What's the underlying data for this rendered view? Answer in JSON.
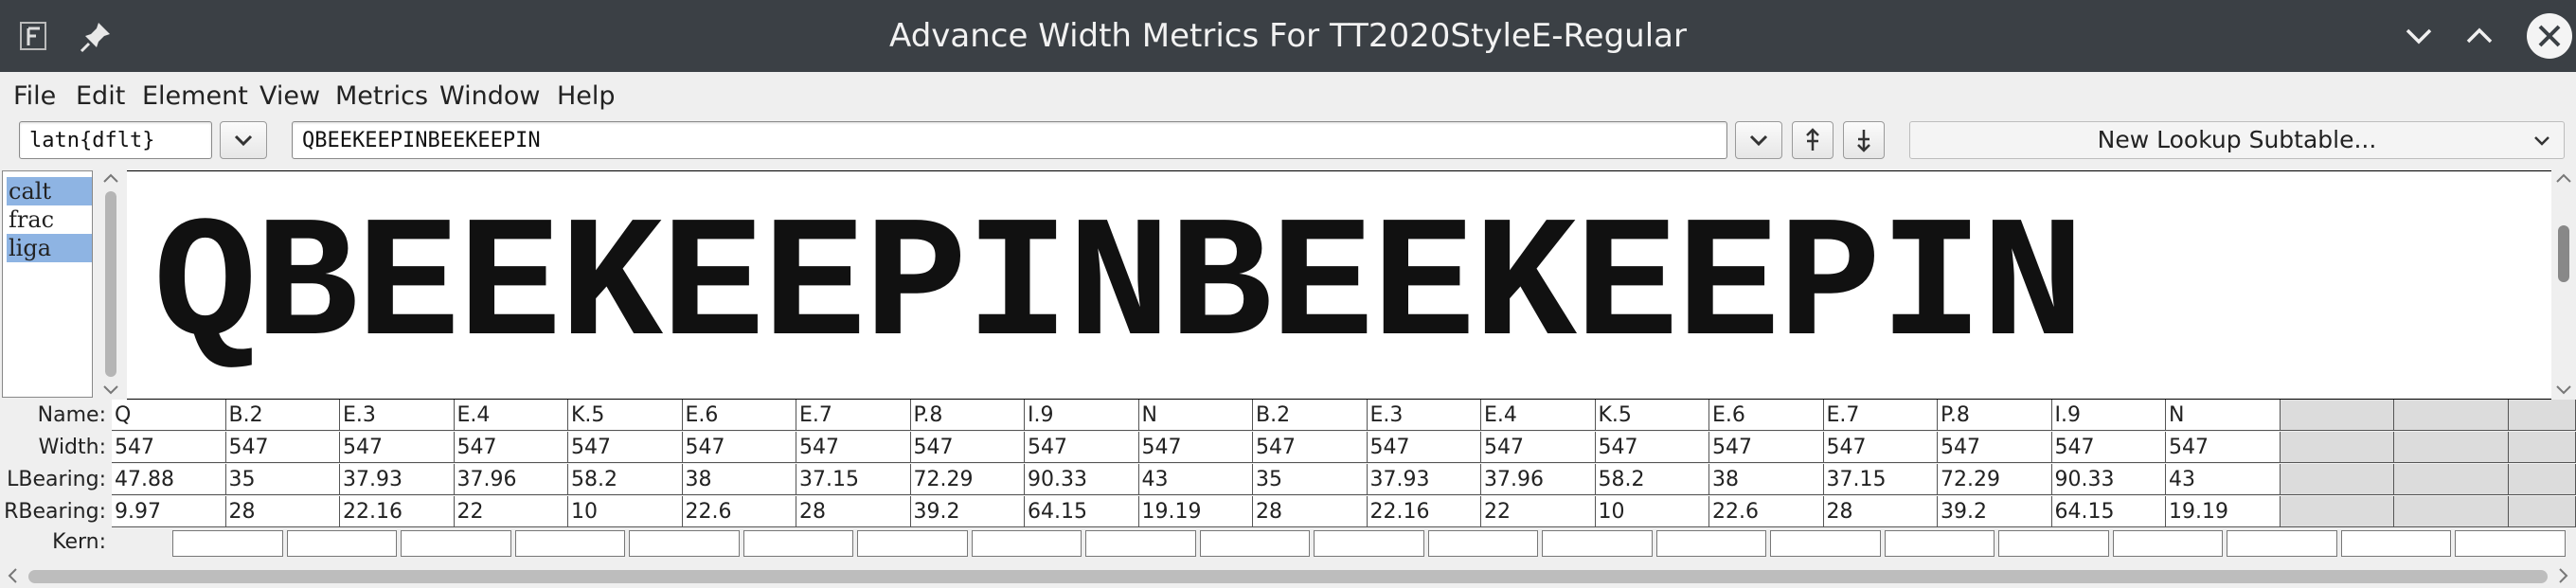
{
  "window": {
    "title": "Advance Width Metrics For TT2020StyleE-Regular"
  },
  "menu": {
    "items": [
      {
        "label": "File"
      },
      {
        "label": "Edit"
      },
      {
        "label": "Element"
      },
      {
        "label": "View"
      },
      {
        "label": "Metrics"
      },
      {
        "label": "Window"
      },
      {
        "label": "Help"
      }
    ]
  },
  "toolbar": {
    "script_value": "latn{dflt}",
    "text_value": "QBEEKEEPINBEEKEEPIN",
    "subtable_label": "New Lookup Subtable..."
  },
  "features": {
    "items": [
      {
        "label": "calt",
        "selected": true
      },
      {
        "label": "frac",
        "selected": false
      },
      {
        "label": "liga",
        "selected": true
      }
    ]
  },
  "preview": {
    "text": "QBEEKEEPINBEEKEEPIN"
  },
  "grid": {
    "row_labels": {
      "name": "Name:",
      "width": "Width:",
      "lbearing": "LBearing:",
      "rbearing": "RBearing:",
      "kern": "Kern:"
    },
    "names": [
      "Q",
      "B.2",
      "E.3",
      "E.4",
      "K.5",
      "E.6",
      "E.7",
      "P.8",
      "I.9",
      "N",
      "B.2",
      "E.3",
      "E.4",
      "K.5",
      "E.6",
      "E.7",
      "P.8",
      "I.9",
      "N"
    ],
    "widths": [
      "547",
      "547",
      "547",
      "547",
      "547",
      "547",
      "547",
      "547",
      "547",
      "547",
      "547",
      "547",
      "547",
      "547",
      "547",
      "547",
      "547",
      "547",
      "547"
    ],
    "lbearings": [
      "47.88",
      "35",
      "37.93",
      "37.96",
      "58.2",
      "38",
      "37.15",
      "72.29",
      "90.33",
      "43",
      "35",
      "37.93",
      "37.96",
      "58.2",
      "38",
      "37.15",
      "72.29",
      "90.33",
      "43"
    ],
    "rbearings": [
      "9.97",
      "28",
      "22.16",
      "22",
      "10",
      "22.6",
      "28",
      "39.2",
      "64.15",
      "19.19",
      "28",
      "22.16",
      "22",
      "10",
      "22.6",
      "28",
      "39.2",
      "64.15",
      "19.19"
    ]
  },
  "colors": {
    "titlebar": "#3b4045",
    "selection": "#8eb4e3"
  }
}
